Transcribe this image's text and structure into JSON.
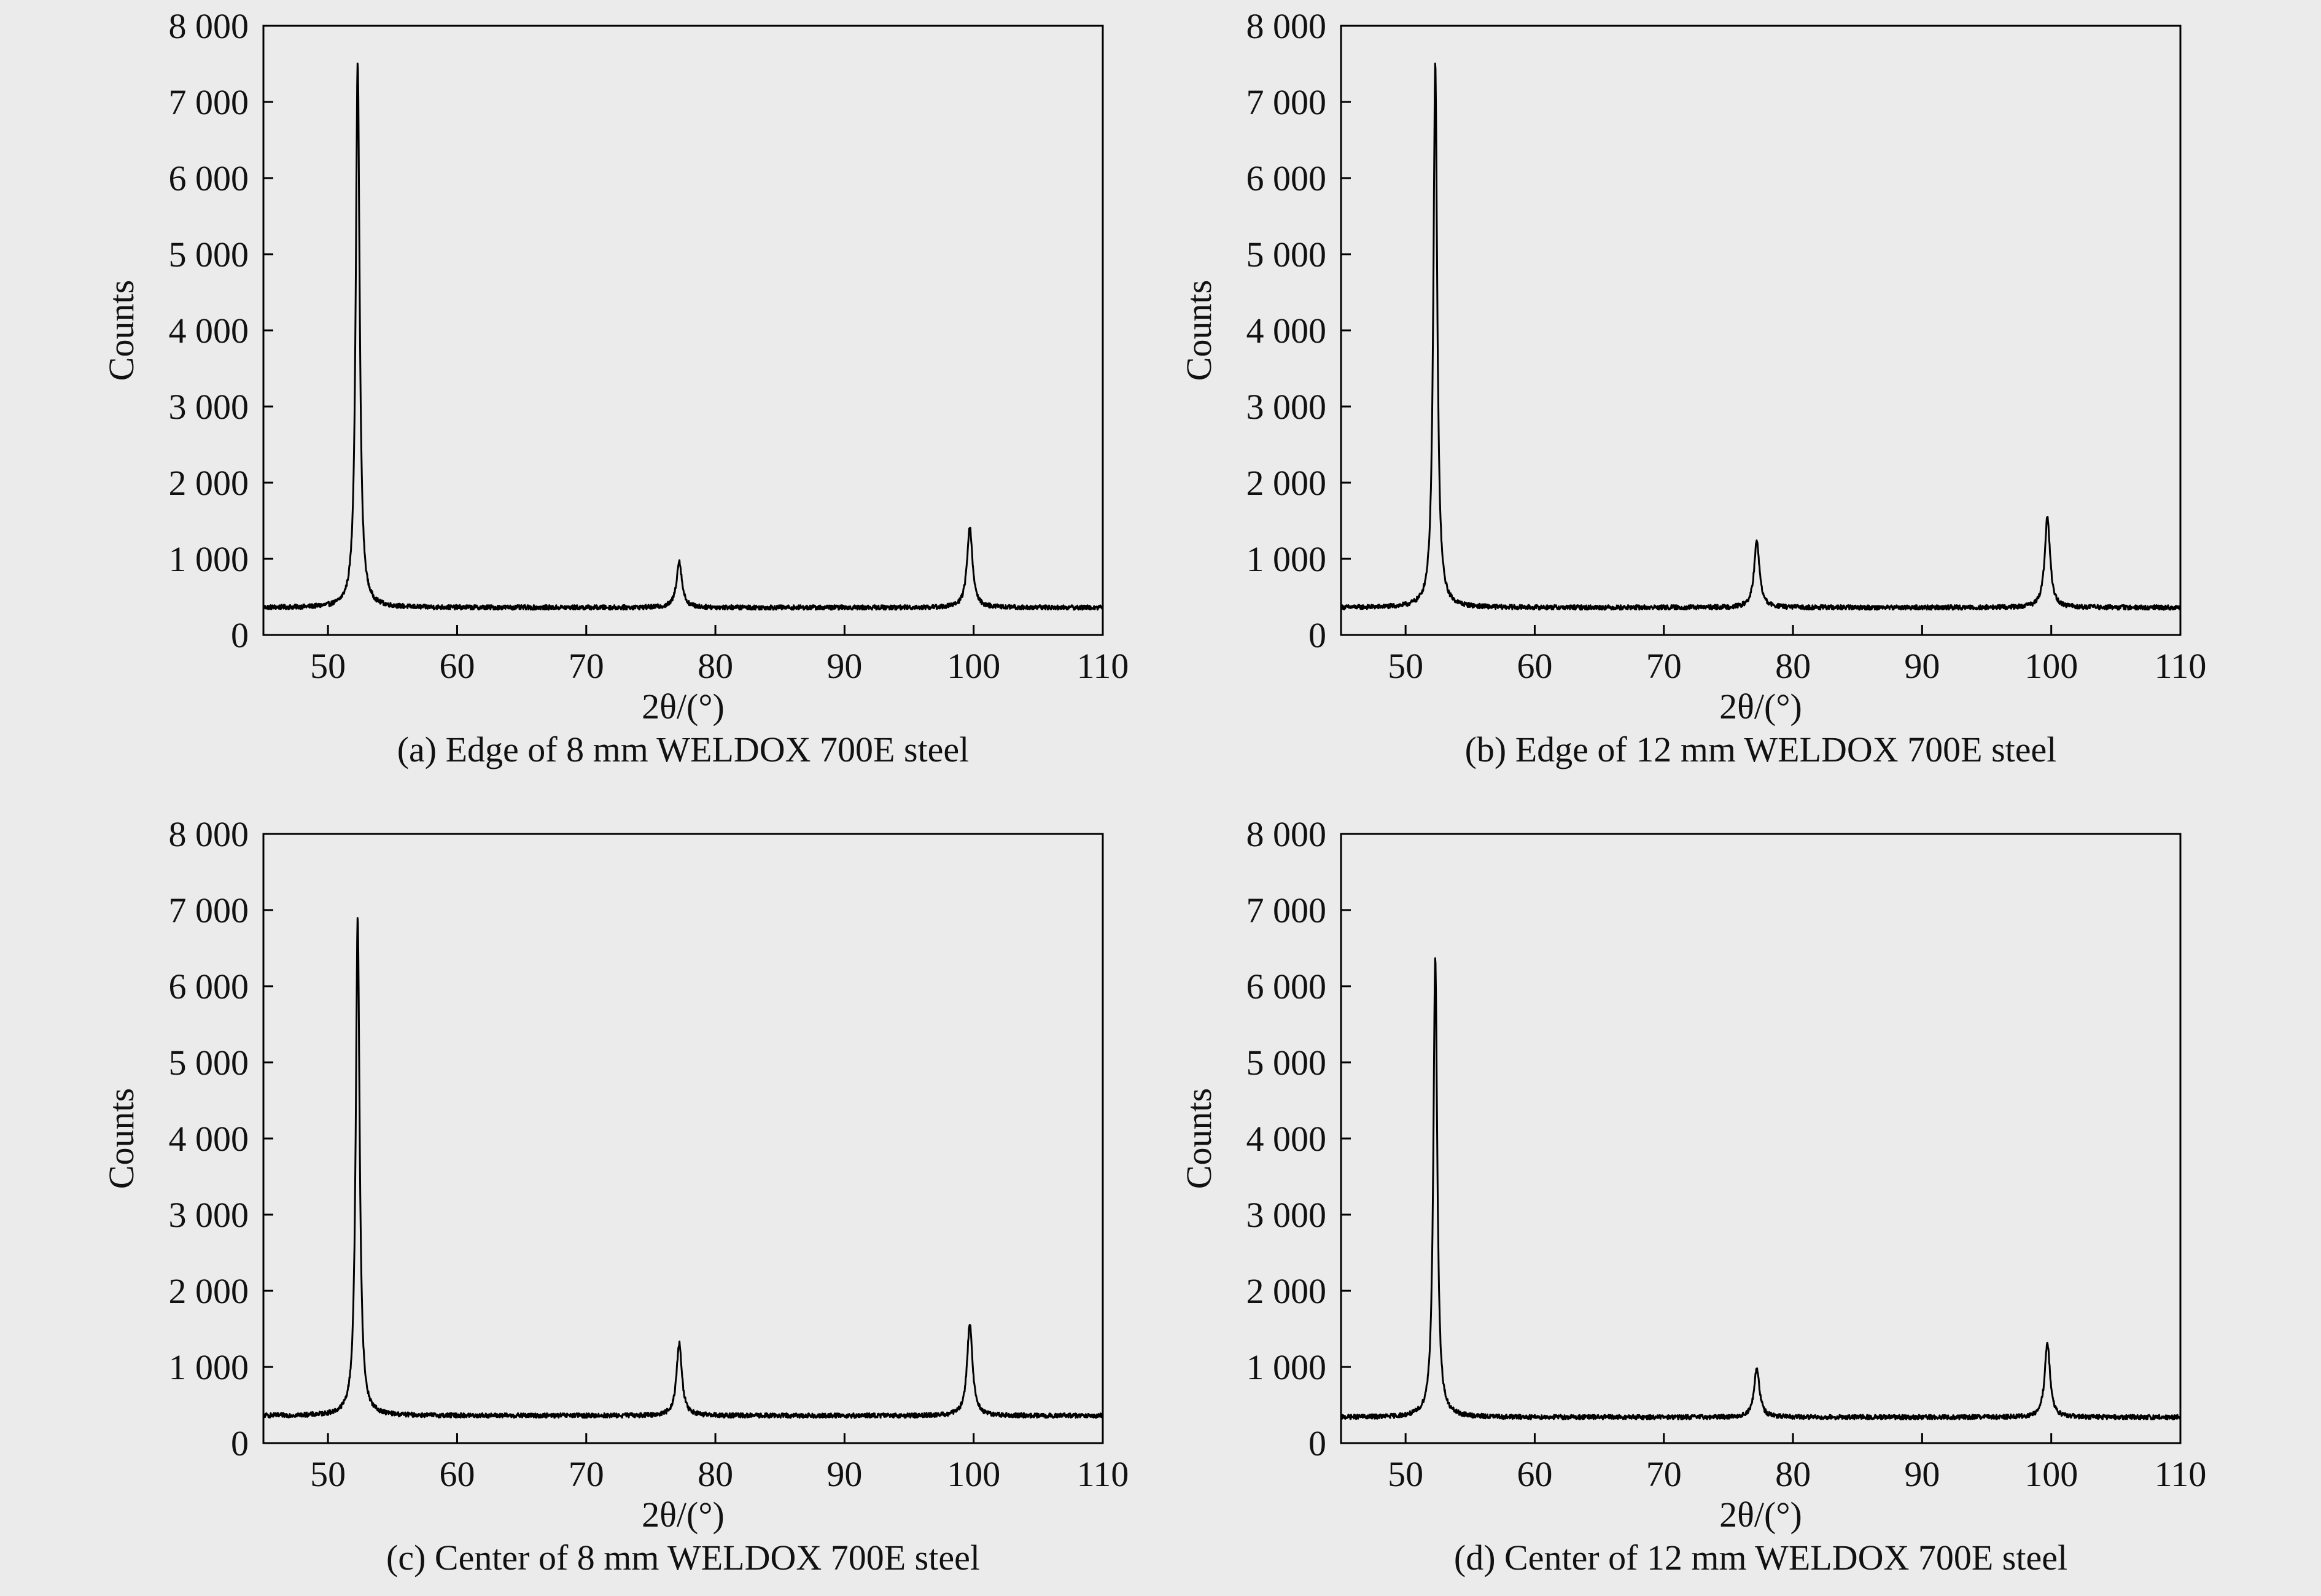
{
  "figure": {
    "background": "#ebebeb",
    "line_color": "#000000"
  },
  "chart_data": [
    {
      "type": "line",
      "caption": "(a) Edge of 8 mm WELDOX 700E steel",
      "xlabel": "2θ/(°)",
      "ylabel": "Counts",
      "xlim": [
        45,
        110
      ],
      "ylim": [
        0,
        8000
      ],
      "xticks": [
        50,
        60,
        70,
        80,
        90,
        100,
        110
      ],
      "yticks": [
        0,
        1000,
        2000,
        3000,
        4000,
        5000,
        6000,
        7000,
        8000
      ],
      "ytick_labels": [
        "0",
        "1 000",
        "2 000",
        "3 000",
        "4 000",
        "5 000",
        "6 000",
        "7 000",
        "8 000"
      ],
      "grid": false,
      "baseline": 360,
      "peaks": [
        {
          "x": 52.3,
          "y": 7550
        },
        {
          "x": 77.2,
          "y": 970
        },
        {
          "x": 99.7,
          "y": 1420
        }
      ]
    },
    {
      "type": "line",
      "caption": "(b) Edge of 12 mm WELDOX 700E steel",
      "xlabel": "2θ/(°)",
      "ylabel": "Counts",
      "xlim": [
        45,
        110
      ],
      "ylim": [
        0,
        8000
      ],
      "xticks": [
        50,
        60,
        70,
        80,
        90,
        100,
        110
      ],
      "yticks": [
        0,
        1000,
        2000,
        3000,
        4000,
        5000,
        6000,
        7000,
        8000
      ],
      "ytick_labels": [
        "0",
        "1 000",
        "2 000",
        "3 000",
        "4 000",
        "5 000",
        "6 000",
        "7 000",
        "8 000"
      ],
      "grid": false,
      "baseline": 360,
      "peaks": [
        {
          "x": 52.3,
          "y": 7500
        },
        {
          "x": 77.2,
          "y": 1230
        },
        {
          "x": 99.7,
          "y": 1540
        }
      ]
    },
    {
      "type": "line",
      "caption": "(c) Center of 8 mm WELDOX 700E steel",
      "xlabel": "2θ/(°)",
      "ylabel": "Counts",
      "xlim": [
        45,
        110
      ],
      "ylim": [
        0,
        8000
      ],
      "xticks": [
        50,
        60,
        70,
        80,
        90,
        100,
        110
      ],
      "yticks": [
        0,
        1000,
        2000,
        3000,
        4000,
        5000,
        6000,
        7000,
        8000
      ],
      "ytick_labels": [
        "0",
        "1 000",
        "2 000",
        "3 000",
        "4 000",
        "5 000",
        "6 000",
        "7 000",
        "8 000"
      ],
      "grid": false,
      "baseline": 360,
      "peaks": [
        {
          "x": 52.3,
          "y": 6900
        },
        {
          "x": 77.2,
          "y": 1310
        },
        {
          "x": 99.7,
          "y": 1570
        }
      ]
    },
    {
      "type": "line",
      "caption": "(d) Center of 12 mm WELDOX 700E steel",
      "xlabel": "2θ/(°)",
      "ylabel": "Counts",
      "xlim": [
        45,
        110
      ],
      "ylim": [
        0,
        8000
      ],
      "xticks": [
        50,
        60,
        70,
        80,
        90,
        100,
        110
      ],
      "yticks": [
        0,
        1000,
        2000,
        3000,
        4000,
        5000,
        6000,
        7000,
        8000
      ],
      "ytick_labels": [
        "0",
        "1 000",
        "2 000",
        "3 000",
        "4 000",
        "5 000",
        "6 000",
        "7 000",
        "8 000"
      ],
      "grid": false,
      "baseline": 340,
      "peaks": [
        {
          "x": 52.3,
          "y": 6380
        },
        {
          "x": 77.2,
          "y": 980
        },
        {
          "x": 99.7,
          "y": 1300
        }
      ]
    }
  ]
}
